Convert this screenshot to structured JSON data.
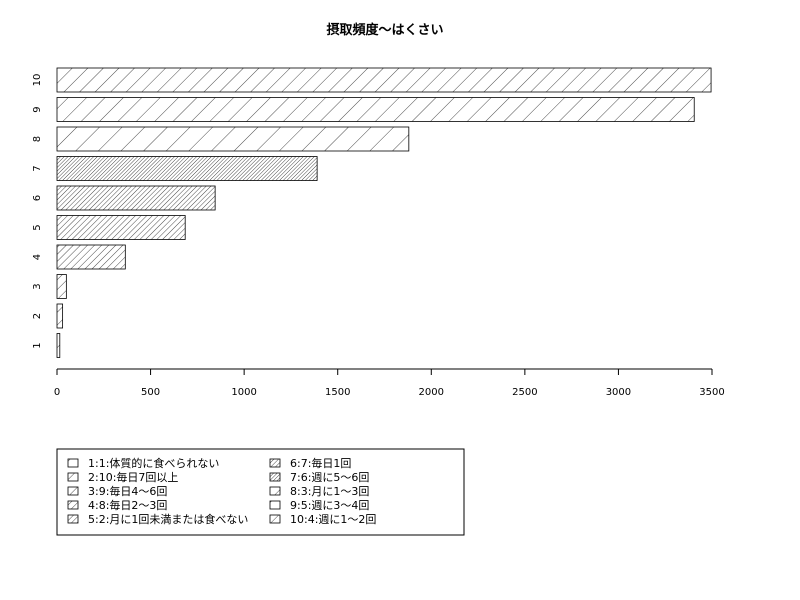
{
  "chart_data": {
    "type": "bar",
    "orientation": "horizontal",
    "title": "摂取頻度〜はくさい",
    "xlabel": "",
    "ylabel": "",
    "categories": [
      "1",
      "2",
      "3",
      "4",
      "5",
      "6",
      "7",
      "8",
      "9",
      "10"
    ],
    "values": [
      15,
      30,
      50,
      365,
      685,
      845,
      1390,
      1880,
      3405,
      3495
    ],
    "xlim": [
      0,
      3500
    ],
    "x_ticks": [
      0,
      500,
      1000,
      1500,
      2000,
      2500,
      3000,
      3500
    ],
    "grid": false,
    "legend_placement": "bottom-left",
    "legend": [
      "1:1:体質的に食べられない",
      "2:10:毎日7回以上",
      "3:9:毎日4〜6回",
      "4:8:毎日2〜3回",
      "5:2:月に1回未満または食べない",
      "6:7:毎日1回",
      "7:6:週に5〜6回",
      "8:3:月に1〜3回",
      "9:5:週に3〜4回",
      "10:4:週に1〜2回"
    ]
  }
}
